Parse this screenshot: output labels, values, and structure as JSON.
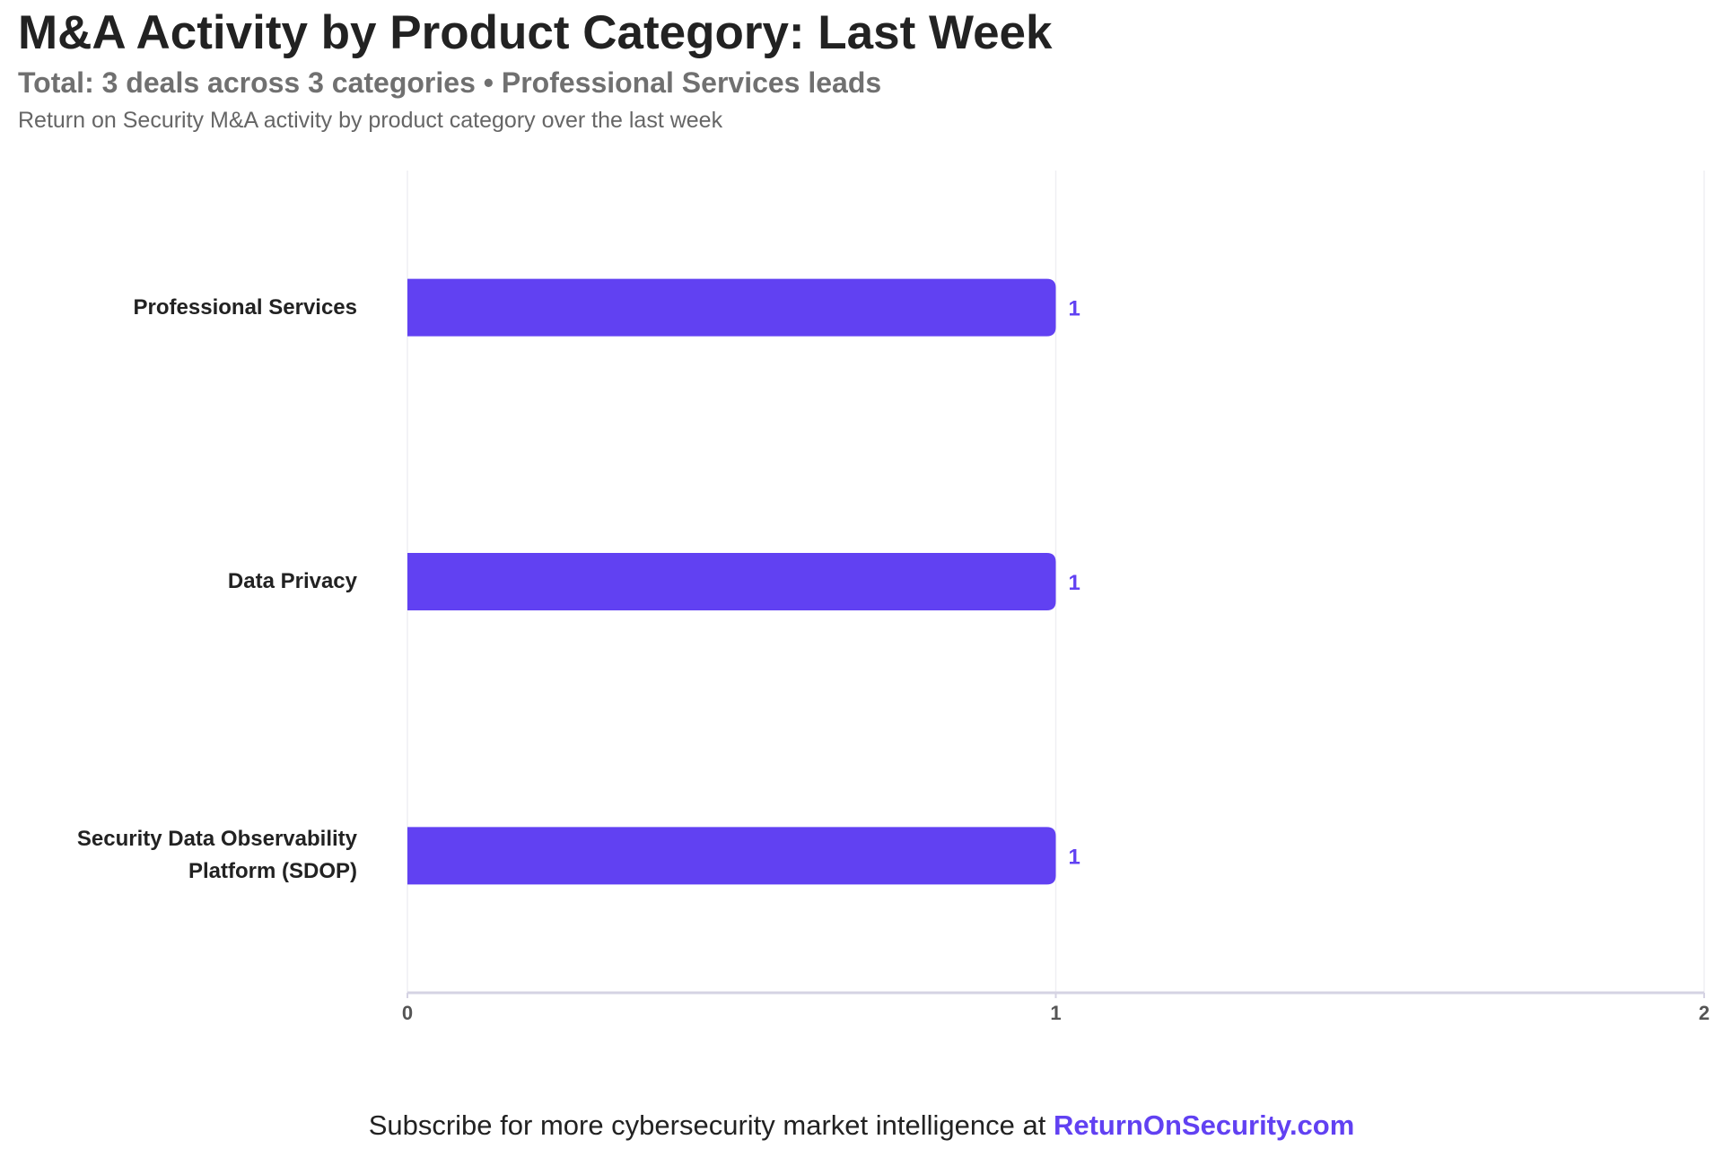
{
  "chart_data": {
    "type": "bar",
    "orientation": "horizontal",
    "title": "M&A Activity by Product Category: Last Week",
    "subtitle": "Total: 3 deals across 3 categories • Professional Services leads",
    "description": "Return on Security M&A activity by product category over the last week",
    "categories": [
      "Professional Services",
      "Data Privacy",
      "Security Data Observability Platform (SDOP)"
    ],
    "values": [
      1,
      1,
      1
    ],
    "color": "#6141f2",
    "xlim": [
      0,
      2
    ],
    "xticks": [
      0,
      1,
      2
    ],
    "grid": true
  },
  "footer": {
    "text": "Subscribe for more cybersecurity market intelligence at",
    "link": "ReturnOnSecurity.com"
  }
}
